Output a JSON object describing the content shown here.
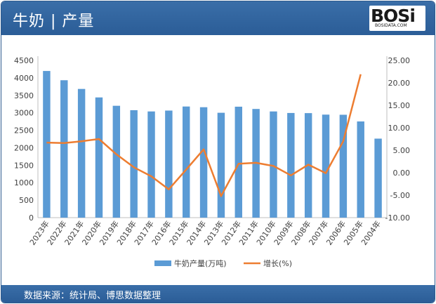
{
  "header": {
    "title": "牛奶 | 产量"
  },
  "logo": {
    "mark": "BOSi",
    "sub": "BOSIDATA.COM"
  },
  "footer": {
    "source": "数据来源：统计局、博思数据整理"
  },
  "colors": {
    "bar": "#5b9bd5",
    "line": "#ed7d31",
    "header": "#2b5d97"
  },
  "chart_data": {
    "type": "bar",
    "categories": [
      "2023年",
      "2022年",
      "2021年",
      "2020年",
      "2019年",
      "2018年",
      "2017年",
      "2016年",
      "2015年",
      "2014年",
      "2013年",
      "2012年",
      "2011年",
      "2010年",
      "2009年",
      "2008年",
      "2007年",
      "2006年",
      "2005年",
      "2004年"
    ],
    "series": [
      {
        "name": "牛奶产量(万吨)",
        "type": "bar",
        "axis": "left",
        "values": [
          4197,
          3932,
          3683,
          3440,
          3201,
          3075,
          3039,
          3064,
          3180,
          3160,
          3001,
          3175,
          3110,
          3039,
          2995,
          2991,
          2948,
          2944,
          2753,
          2261
        ]
      },
      {
        "name": "增长(%)",
        "type": "line",
        "axis": "right",
        "values": [
          6.7,
          6.6,
          7.0,
          7.5,
          4.1,
          1.2,
          -0.8,
          -3.7,
          0.7,
          5.2,
          -5.2,
          2.0,
          2.2,
          1.5,
          -0.6,
          1.8,
          -0.1,
          7.0,
          21.9,
          null
        ]
      }
    ],
    "y_left": {
      "min": 0,
      "max": 4500,
      "ticks": [
        "0",
        "500",
        "1000",
        "1500",
        "2000",
        "2500",
        "3000",
        "3500",
        "4000",
        "4500"
      ]
    },
    "y_right": {
      "min": -10,
      "max": 25,
      "ticks": [
        "-10.00",
        "-5.00",
        "0.00",
        "5.00",
        "10.00",
        "15.00",
        "20.00",
        "25.00"
      ]
    },
    "legend": {
      "placement": "bottom",
      "items": [
        "牛奶产量(万吨)",
        "增长(%)"
      ]
    },
    "grid": false
  }
}
